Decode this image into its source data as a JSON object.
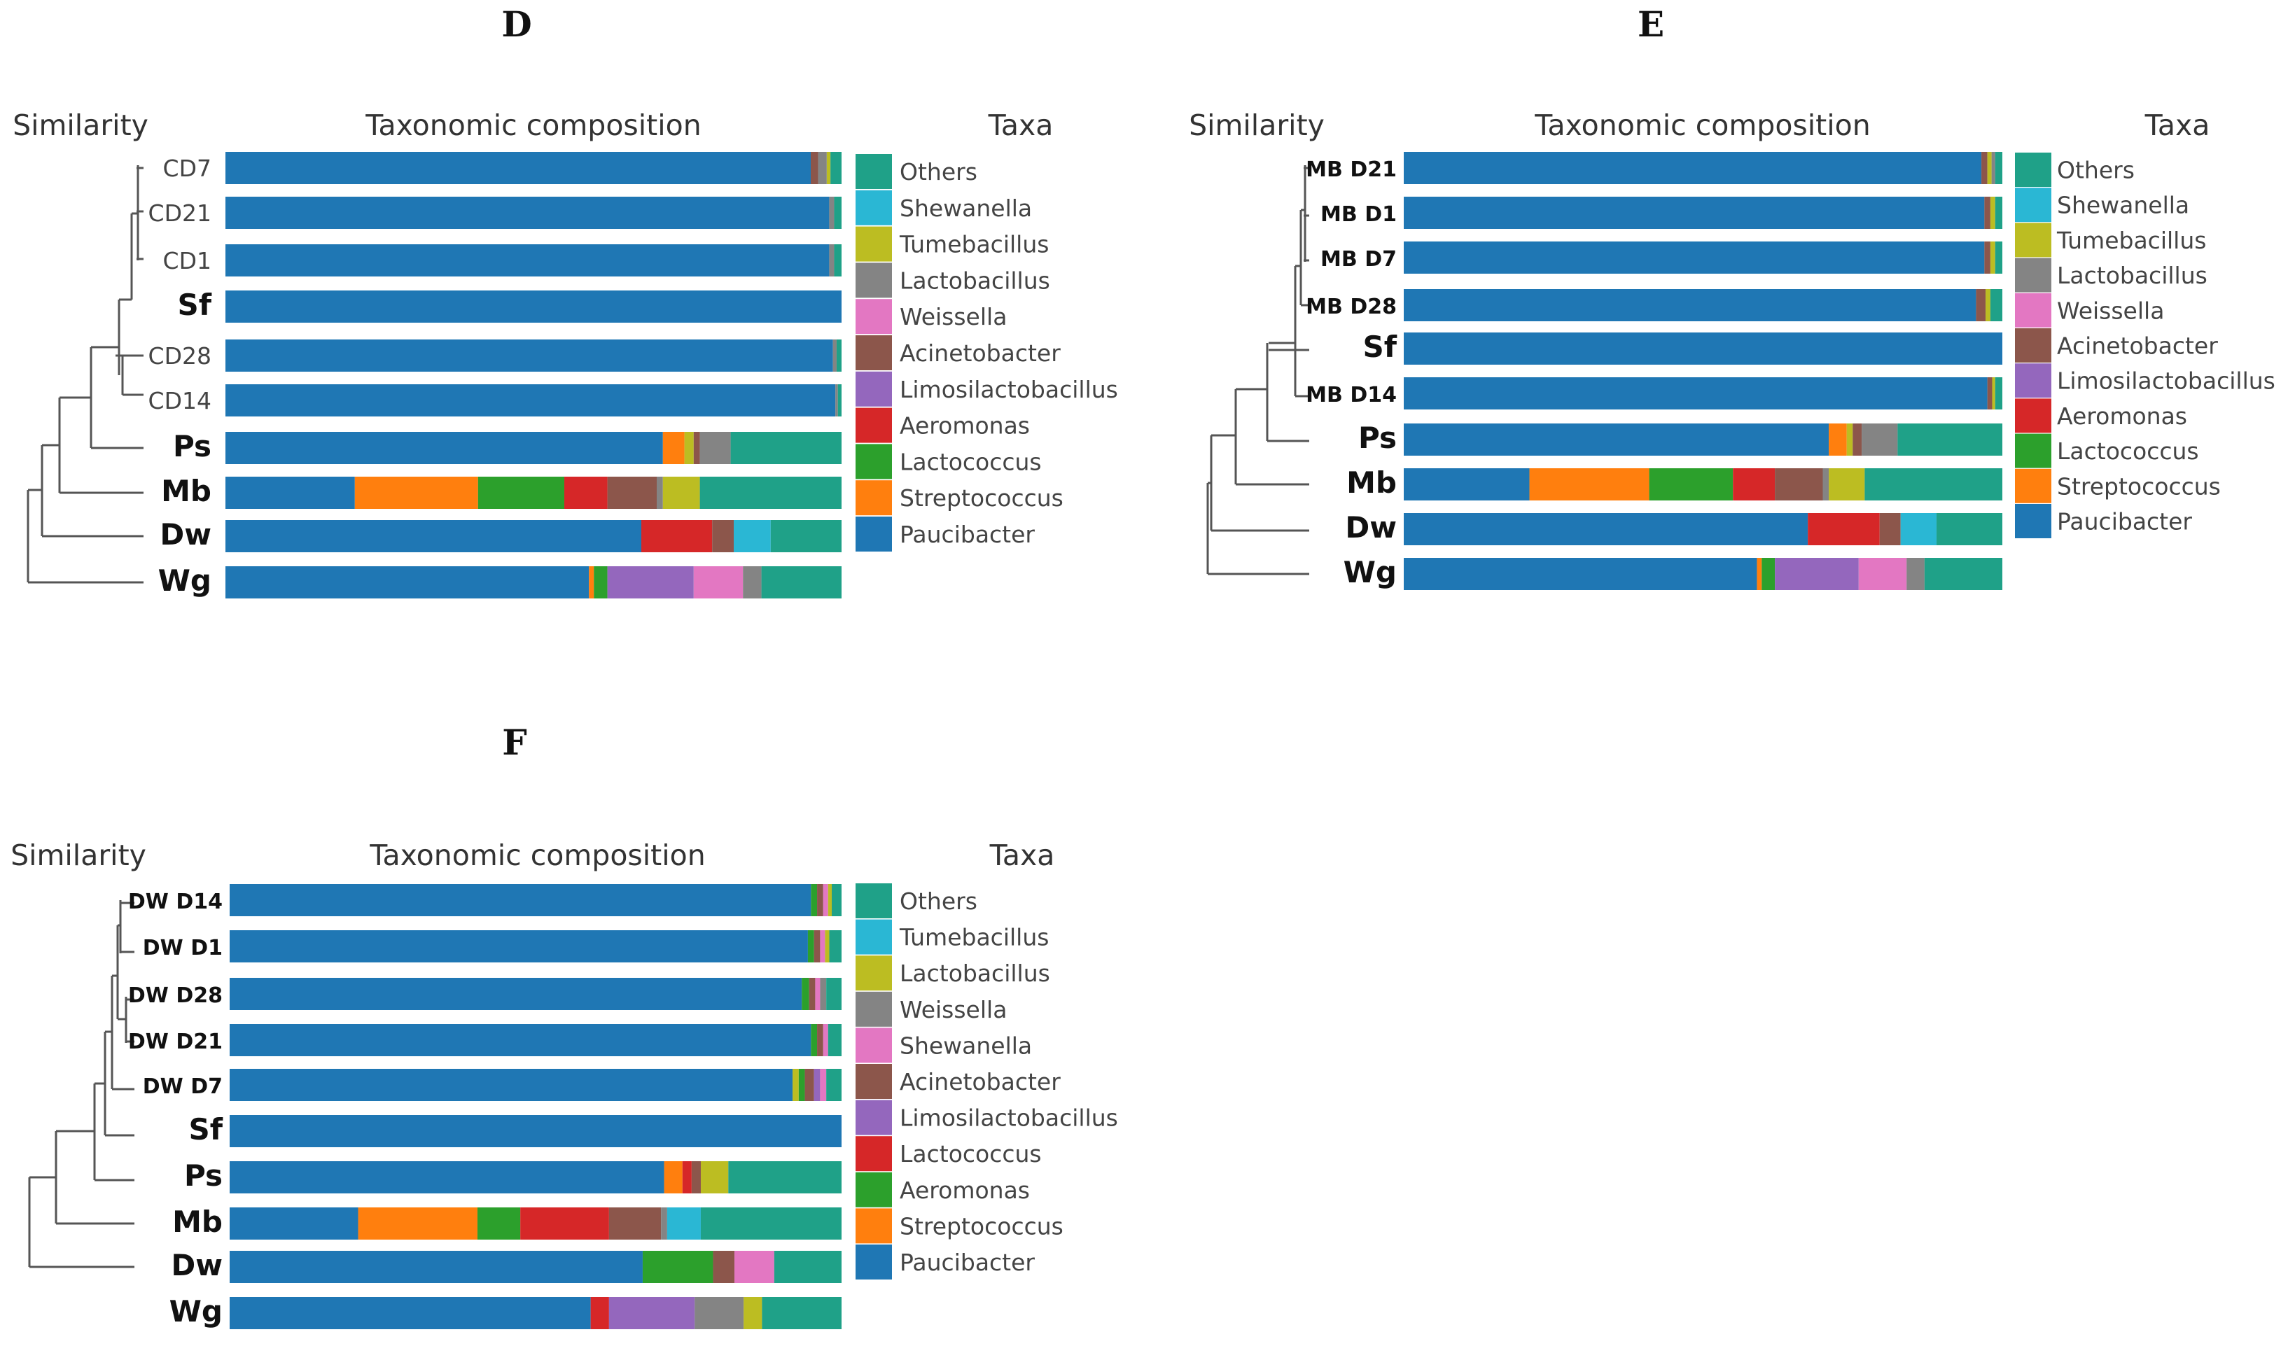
{
  "chart_data": [
    {
      "type": "bar",
      "panel": "D",
      "title": "D",
      "similarity_label": "Similarity",
      "composition_label": "Taxonomic composition",
      "taxa_label": "Taxa",
      "taxa": [
        {
          "name": "Others",
          "color": "#1fa188"
        },
        {
          "name": "Shewanella",
          "color": "#2ab7d4"
        },
        {
          "name": "Tumebacillus",
          "color": "#bcbd22"
        },
        {
          "name": "Lactobacillus",
          "color": "#848484"
        },
        {
          "name": "Weissella",
          "color": "#e377c2"
        },
        {
          "name": "Acinetobacter",
          "color": "#8c564b"
        },
        {
          "name": "Limosilactobacillus",
          "color": "#9467bd"
        },
        {
          "name": "Aeromonas",
          "color": "#d62728"
        },
        {
          "name": "Lactococcus",
          "color": "#2ca02c"
        },
        {
          "name": "Streptococcus",
          "color": "#ff7f0e"
        },
        {
          "name": "Paucibacter",
          "color": "#1f77b4"
        }
      ],
      "samples": [
        {
          "label": "CD7",
          "bold": false,
          "segments": {
            "Paucibacter": 95.0,
            "Acinetobacter": 1.2,
            "Lactobacillus": 1.4,
            "Tumebacillus": 0.6,
            "Others": 1.8
          }
        },
        {
          "label": "CD21",
          "bold": false,
          "segments": {
            "Paucibacter": 98.0,
            "Lactobacillus": 0.8,
            "Others": 1.2
          }
        },
        {
          "label": "CD1",
          "bold": false,
          "segments": {
            "Paucibacter": 98.0,
            "Lactobacillus": 0.8,
            "Others": 1.2
          }
        },
        {
          "label": "Sf",
          "bold": true,
          "segments": {
            "Paucibacter": 100
          }
        },
        {
          "label": "CD28",
          "bold": false,
          "segments": {
            "Paucibacter": 98.6,
            "Lactobacillus": 0.6,
            "Others": 0.8
          }
        },
        {
          "label": "CD14",
          "bold": false,
          "segments": {
            "Paucibacter": 99.0,
            "Lactobacillus": 0.4,
            "Others": 0.6
          }
        },
        {
          "label": "Ps",
          "bold": true,
          "segments": {
            "Paucibacter": 71.0,
            "Streptococcus": 3.5,
            "Tumebacillus": 1.5,
            "Acinetobacter": 1.0,
            "Lactobacillus": 5.0,
            "Others": 18.0
          }
        },
        {
          "label": "Mb",
          "bold": true,
          "segments": {
            "Paucibacter": 21.0,
            "Streptococcus": 20.0,
            "Lactococcus": 14.0,
            "Aeromonas": 7.0,
            "Acinetobacter": 8.0,
            "Lactobacillus": 1.0,
            "Tumebacillus": 6.0,
            "Others": 23.0
          }
        },
        {
          "label": "Dw",
          "bold": true,
          "segments": {
            "Paucibacter": 67.5,
            "Aeromonas": 11.5,
            "Acinetobacter": 3.5,
            "Shewanella": 6.0,
            "Others": 11.5
          }
        },
        {
          "label": "Wg",
          "bold": true,
          "segments": {
            "Paucibacter": 59.0,
            "Streptococcus": 0.8,
            "Lactococcus": 2.2,
            "Limosilactobacillus": 14.0,
            "Weissella": 8.0,
            "Lactobacillus": 3.0,
            "Others": 13.0
          }
        }
      ]
    },
    {
      "type": "bar",
      "panel": "E",
      "title": "E",
      "similarity_label": "Similarity",
      "composition_label": "Taxonomic composition",
      "taxa_label": "Taxa",
      "taxa": [
        {
          "name": "Others",
          "color": "#1fa188"
        },
        {
          "name": "Shewanella",
          "color": "#2ab7d4"
        },
        {
          "name": "Tumebacillus",
          "color": "#bcbd22"
        },
        {
          "name": "Lactobacillus",
          "color": "#848484"
        },
        {
          "name": "Weissella",
          "color": "#e377c2"
        },
        {
          "name": "Acinetobacter",
          "color": "#8c564b"
        },
        {
          "name": "Limosilactobacillus",
          "color": "#9467bd"
        },
        {
          "name": "Aeromonas",
          "color": "#d62728"
        },
        {
          "name": "Lactococcus",
          "color": "#2ca02c"
        },
        {
          "name": "Streptococcus",
          "color": "#ff7f0e"
        },
        {
          "name": "Paucibacter",
          "color": "#1f77b4"
        }
      ],
      "samples": [
        {
          "label": "MB D21",
          "bold": false,
          "segments": {
            "Paucibacter": 96.5,
            "Acinetobacter": 1.0,
            "Tumebacillus": 0.7,
            "Lactobacillus": 0.6,
            "Others": 1.2
          }
        },
        {
          "label": "MB D1",
          "bold": false,
          "segments": {
            "Paucibacter": 97.0,
            "Acinetobacter": 1.0,
            "Tumebacillus": 0.8,
            "Others": 1.2
          }
        },
        {
          "label": "MB D7",
          "bold": false,
          "segments": {
            "Paucibacter": 97.0,
            "Acinetobacter": 1.0,
            "Tumebacillus": 0.8,
            "Others": 1.2
          }
        },
        {
          "label": "MB D28",
          "bold": false,
          "segments": {
            "Paucibacter": 95.6,
            "Acinetobacter": 1.6,
            "Tumebacillus": 0.8,
            "Others": 2.0
          }
        },
        {
          "label": "Sf",
          "bold": true,
          "segments": {
            "Paucibacter": 100
          }
        },
        {
          "label": "MB D14",
          "bold": false,
          "segments": {
            "Paucibacter": 97.5,
            "Acinetobacter": 0.8,
            "Tumebacillus": 0.5,
            "Others": 1.2
          }
        },
        {
          "label": "Ps",
          "bold": true,
          "segments": {
            "Paucibacter": 71.0,
            "Streptococcus": 3.0,
            "Tumebacillus": 1.0,
            "Acinetobacter": 1.5,
            "Lactobacillus": 6.0,
            "Others": 17.5
          }
        },
        {
          "label": "Mb",
          "bold": true,
          "segments": {
            "Paucibacter": 21.0,
            "Streptococcus": 20.0,
            "Lactococcus": 14.0,
            "Aeromonas": 7.0,
            "Acinetobacter": 8.0,
            "Lactobacillus": 1.0,
            "Tumebacillus": 6.0,
            "Others": 23.0
          }
        },
        {
          "label": "Dw",
          "bold": true,
          "segments": {
            "Paucibacter": 67.5,
            "Aeromonas": 12.0,
            "Acinetobacter": 3.5,
            "Shewanella": 6.0,
            "Others": 11.0
          }
        },
        {
          "label": "Wg",
          "bold": true,
          "segments": {
            "Paucibacter": 59.0,
            "Streptococcus": 0.8,
            "Lactococcus": 2.2,
            "Limosilactobacillus": 14.0,
            "Weissella": 8.0,
            "Lactobacillus": 3.0,
            "Others": 13.0
          }
        }
      ]
    },
    {
      "type": "bar",
      "panel": "F",
      "title": "F",
      "similarity_label": "Similarity",
      "composition_label": "Taxonomic composition",
      "taxa_label": "Taxa",
      "taxa": [
        {
          "name": "Others",
          "color": "#1fa188"
        },
        {
          "name": "Tumebacillus",
          "color": "#2ab7d4"
        },
        {
          "name": "Lactobacillus",
          "color": "#bcbd22"
        },
        {
          "name": "Weissella",
          "color": "#848484"
        },
        {
          "name": "Shewanella",
          "color": "#e377c2"
        },
        {
          "name": "Acinetobacter",
          "color": "#8c564b"
        },
        {
          "name": "Limosilactobacillus",
          "color": "#9467bd"
        },
        {
          "name": "Lactococcus",
          "color": "#d62728"
        },
        {
          "name": "Aeromonas",
          "color": "#2ca02c"
        },
        {
          "name": "Streptococcus",
          "color": "#ff7f0e"
        },
        {
          "name": "Paucibacter",
          "color": "#1f77b4"
        }
      ],
      "samples": [
        {
          "label": "DW D14",
          "bold": false,
          "segments": {
            "Paucibacter": 95.0,
            "Aeromonas": 1.0,
            "Acinetobacter": 1.0,
            "Shewanella": 0.8,
            "Lactobacillus": 0.6,
            "Others": 1.6
          }
        },
        {
          "label": "DW D1",
          "bold": false,
          "segments": {
            "Paucibacter": 94.5,
            "Aeromonas": 1.0,
            "Acinetobacter": 1.0,
            "Shewanella": 0.8,
            "Lactobacillus": 0.7,
            "Others": 2.0
          }
        },
        {
          "label": "DW D28",
          "bold": false,
          "segments": {
            "Paucibacter": 93.5,
            "Aeromonas": 1.2,
            "Acinetobacter": 1.0,
            "Shewanella": 0.8,
            "Weissella": 1.0,
            "Others": 2.5
          }
        },
        {
          "label": "DW D21",
          "bold": false,
          "segments": {
            "Paucibacter": 95.0,
            "Aeromonas": 1.0,
            "Acinetobacter": 1.0,
            "Shewanella": 0.8,
            "Others": 2.2
          }
        },
        {
          "label": "DW D7",
          "bold": false,
          "segments": {
            "Paucibacter": 92.0,
            "Lactobacillus": 1.0,
            "Aeromonas": 1.0,
            "Acinetobacter": 1.5,
            "Limosilactobacillus": 1.0,
            "Shewanella": 1.0,
            "Others": 2.5
          }
        },
        {
          "label": "Sf",
          "bold": true,
          "segments": {
            "Paucibacter": 100
          }
        },
        {
          "label": "Ps",
          "bold": true,
          "segments": {
            "Paucibacter": 71.0,
            "Streptococcus": 3.0,
            "Lactococcus": 1.5,
            "Acinetobacter": 1.5,
            "Lactobacillus": 4.5,
            "Others": 18.5
          }
        },
        {
          "label": "Mb",
          "bold": true,
          "segments": {
            "Paucibacter": 21.0,
            "Streptococcus": 19.5,
            "Aeromonas": 7.0,
            "Lactococcus": 14.5,
            "Acinetobacter": 8.5,
            "Weissella": 1.0,
            "Tumebacillus": 5.5,
            "Others": 23.0
          }
        },
        {
          "label": "Dw",
          "bold": true,
          "segments": {
            "Paucibacter": 67.5,
            "Aeromonas": 11.5,
            "Acinetobacter": 3.5,
            "Shewanella": 6.5,
            "Others": 11.0
          }
        },
        {
          "label": "Wg",
          "bold": true,
          "segments": {
            "Paucibacter": 59.0,
            "Lactococcus": 3.0,
            "Limosilactobacillus": 14.0,
            "Weissella": 8.0,
            "Lactobacillus": 3.0,
            "Others": 13.0
          }
        }
      ]
    }
  ]
}
